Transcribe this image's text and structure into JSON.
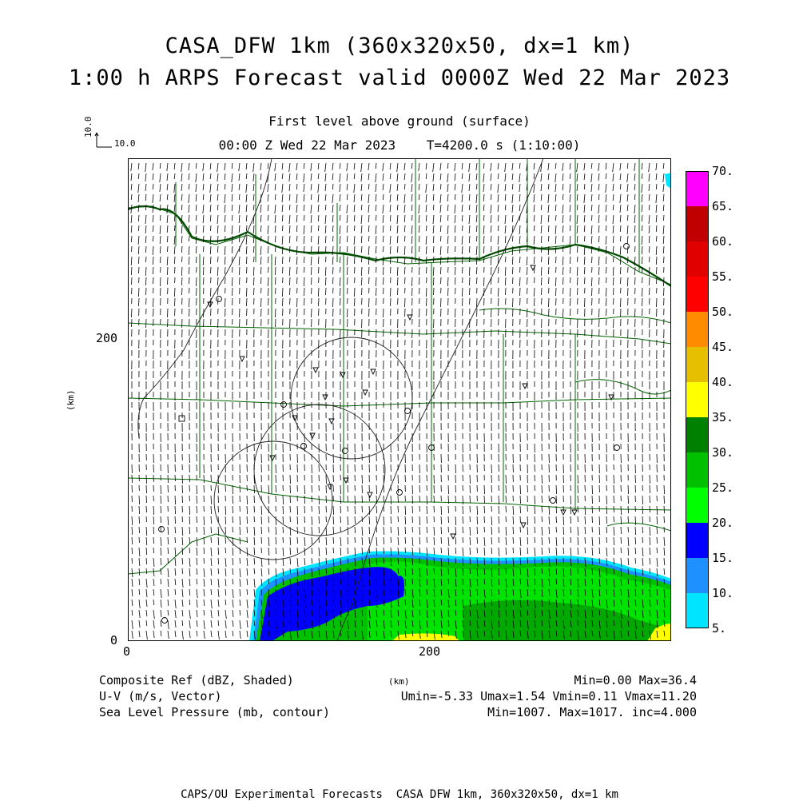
{
  "header": {
    "title_line1": "CASA_DFW 1km (360x320x50, dx=1 km)",
    "title_line2": "1:00 h ARPS Forecast valid 0000Z Wed 22 Mar 2023",
    "level": "First level above ground (surface)",
    "time_line": "00:00 Z Wed 22 Mar 2023    T=4200.0 s (1:10:00)"
  },
  "vector_ref": {
    "vertical_label": "10.0",
    "horizontal_label": "10.0"
  },
  "axes": {
    "x_ticks": [
      "0",
      "200"
    ],
    "y_ticks": [
      "0",
      "200"
    ],
    "x_unit": "(km)",
    "y_unit": "(km)"
  },
  "colorbar": {
    "labels": [
      "70.",
      "65.",
      "60.",
      "55.",
      "50.",
      "45.",
      "40.",
      "35.",
      "30.",
      "25.",
      "20.",
      "15.",
      "10.",
      "5."
    ],
    "colors": [
      "#ff00ff",
      "#c00000",
      "#e00000",
      "#ff0000",
      "#ff8c00",
      "#e6c000",
      "#ffff00",
      "#008000",
      "#00c000",
      "#00ff00",
      "#0000ff",
      "#1e90ff",
      "#00e5ff"
    ]
  },
  "legend": {
    "line1_left": "Composite Ref (dBZ, Shaded)",
    "line1_right": "Min=0.00 Max=36.4",
    "line2_left": "U-V (m/s, Vector)",
    "line2_right": "Umin=-5.33 Umax=1.54 Vmin=0.11 Vmax=11.20",
    "line3_left": "Sea Level Pressure (mb, contour)",
    "line3_right": "Min=1007. Max=1017. inc=4.000"
  },
  "footer": "CAPS/OU Experimental Forecasts  CASA DFW 1km, 360x320x50, dx=1 km"
}
